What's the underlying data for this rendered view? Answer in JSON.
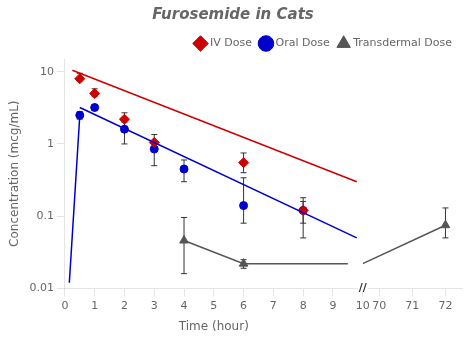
{
  "chart_data": {
    "type": "scatter",
    "title": "Furosemide in Cats",
    "xlabel": "Time (hour)",
    "ylabel": "Concentration (mcg/mL)",
    "log": "y",
    "grid": false,
    "legend": "upper right",
    "xlim": [
      0,
      10
    ],
    "xticks": [
      0,
      1,
      2,
      3,
      4,
      5,
      6,
      7,
      8,
      9,
      10
    ],
    "x2lim": [
      69.5,
      72.5
    ],
    "x2ticks": [
      70,
      71,
      72
    ],
    "ylim": [
      0.01,
      15
    ],
    "yticks": [
      0.01,
      0.1,
      1,
      10
    ],
    "annotations": [
      {
        "text": "//"
      }
    ],
    "series": [
      {
        "type": "line",
        "color": "#cc0000",
        "marker": "none",
        "x": [
          0.25,
          9.8
        ],
        "values": [
          10.5,
          0.3
        ]
      },
      {
        "type": "line",
        "color": "#0000cc",
        "marker": "none",
        "x": [
          0.15,
          0.5
        ],
        "values": [
          0.012,
          2.5
        ]
      },
      {
        "type": "line",
        "color": "#0000cc",
        "marker": "none",
        "x": [
          0.5,
          9.8
        ],
        "values": [
          3.2,
          0.05
        ]
      },
      {
        "type": "line",
        "color": "#555555",
        "marker": "none",
        "x": [
          4,
          6,
          8,
          9.5
        ],
        "values": [
          0.046,
          0.022,
          0.022,
          0.022
        ]
      },
      {
        "name": "IV Dose",
        "type": "scatter",
        "color": "#cc0000",
        "marker": "diamond",
        "x": [
          0.5,
          1,
          2,
          3,
          6,
          8
        ],
        "values": [
          8.0,
          5.0,
          2.2,
          1.05,
          0.55,
          0.12
        ],
        "error_minus": [
          0.5,
          0.5,
          0.5,
          0.2,
          0.15,
          0.04
        ],
        "error_plus": [
          1.5,
          0.8,
          0.5,
          0.3,
          0.2,
          0.06
        ]
      },
      {
        "name": "Oral Dose",
        "type": "scatter",
        "color": "#0000cc",
        "marker": "circle",
        "x": [
          0.5,
          1,
          2,
          3,
          4,
          6,
          8
        ],
        "values": [
          2.5,
          3.2,
          1.6,
          0.85,
          0.45,
          0.14,
          0.12
        ],
        "error_minus": [
          0.3,
          0.3,
          0.6,
          0.35,
          0.15,
          0.06,
          0.07
        ],
        "error_plus": [
          0.3,
          0.3,
          0.4,
          0.2,
          0.15,
          0.2,
          0.04
        ]
      },
      {
        "name": "Transdermal Dose",
        "type": "scatter",
        "color": "#555555",
        "marker": "triangle",
        "x": [
          4,
          6
        ],
        "values": [
          0.046,
          0.022
        ],
        "error_minus": [
          0.03,
          0.003
        ],
        "error_plus": [
          0.05,
          0.003
        ]
      },
      {
        "type": "line",
        "axis": "x2",
        "color": "#555555",
        "marker": "none",
        "x": [
          69.5,
          72
        ],
        "values": [
          0.022,
          0.075
        ]
      },
      {
        "type": "scatter",
        "axis": "x2",
        "color": "#555555",
        "marker": "triangle",
        "x": [
          72
        ],
        "values": [
          0.075
        ],
        "error_minus": [
          0.025
        ],
        "error_plus": [
          0.055
        ]
      }
    ]
  }
}
